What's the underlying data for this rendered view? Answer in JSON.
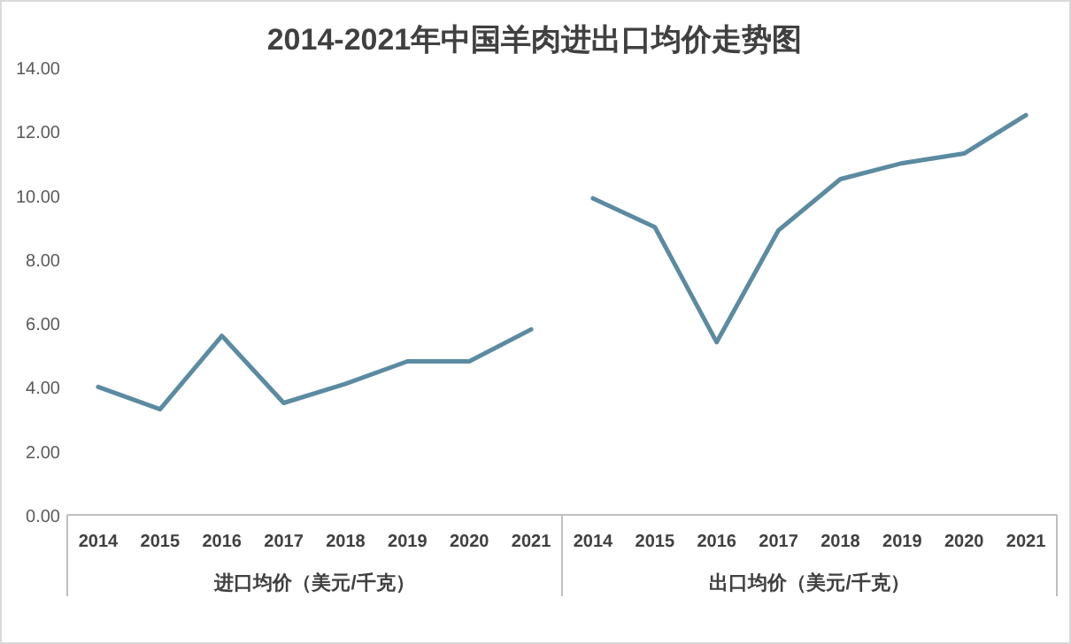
{
  "chart_data": [
    {
      "type": "line",
      "title": "2014-2021年中国羊肉进出口均价走势图",
      "categories": [
        "2014",
        "2015",
        "2016",
        "2017",
        "2018",
        "2019",
        "2020",
        "2021"
      ],
      "series": [
        {
          "color": "#5b8ba1",
          "values": [
            4.0,
            3.3,
            5.6,
            3.5,
            4.1,
            4.8,
            4.8,
            5.8
          ]
        }
      ],
      "xlabel": "进口均价（美元/千克）",
      "ylim": [
        0,
        14
      ],
      "yticks": [
        {
          "value": 0,
          "label": "0.00"
        },
        {
          "value": 2,
          "label": "2.00"
        },
        {
          "value": 4,
          "label": "4.00"
        },
        {
          "value": 6,
          "label": "6.00"
        },
        {
          "value": 8,
          "label": "8.00"
        },
        {
          "value": 10,
          "label": "10.00"
        },
        {
          "value": 12,
          "label": "12.00"
        },
        {
          "value": 14,
          "label": "14.00"
        }
      ]
    },
    {
      "type": "line",
      "categories": [
        "2014",
        "2015",
        "2016",
        "2017",
        "2018",
        "2019",
        "2020",
        "2021"
      ],
      "series": [
        {
          "color": "#5b8ba1",
          "values": [
            9.9,
            9.0,
            5.4,
            8.9,
            10.5,
            11.0,
            11.3,
            12.5
          ]
        }
      ],
      "xlabel": "出口均价（美元/千克）",
      "ylim": [
        0,
        14
      ],
      "tick_labels": "x"
    }
  ]
}
